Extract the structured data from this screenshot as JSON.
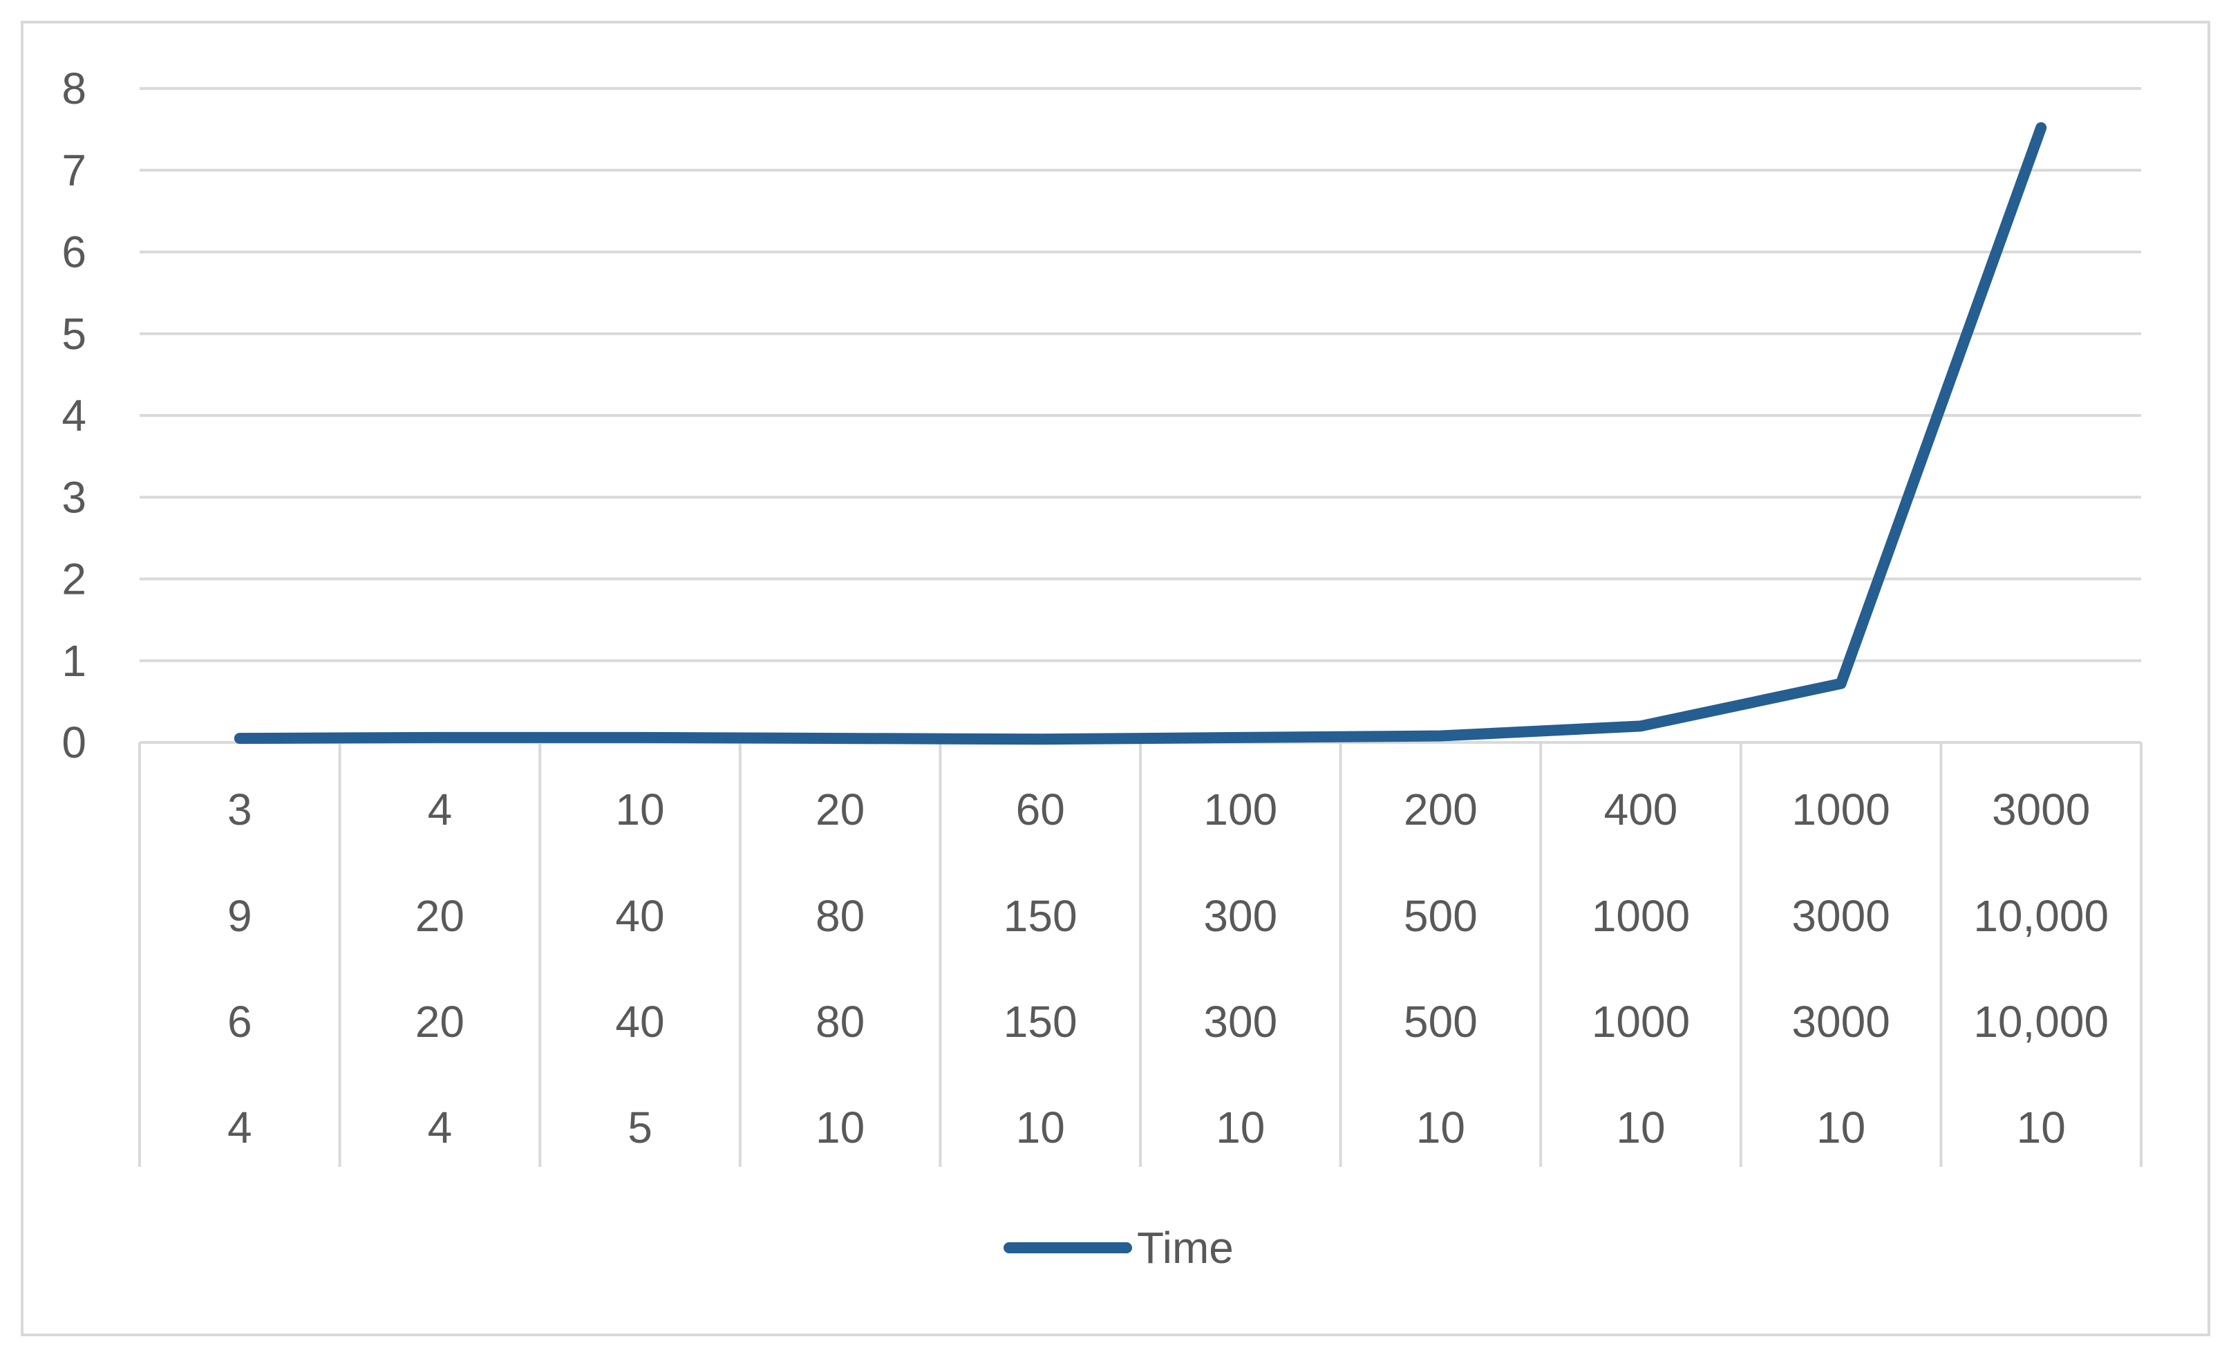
{
  "chart_data": {
    "type": "line",
    "title": "",
    "xlabel": "",
    "ylabel": "",
    "ylim": [
      0,
      8
    ],
    "y_ticks": [
      "0",
      "1",
      "2",
      "3",
      "4",
      "5",
      "6",
      "7",
      "8"
    ],
    "grid": true,
    "legend_position": "bottom",
    "line_color": "#255e91",
    "categories": [
      [
        "3",
        "9",
        "6",
        "4"
      ],
      [
        "4",
        "20",
        "20",
        "4"
      ],
      [
        "10",
        "40",
        "40",
        "5"
      ],
      [
        "20",
        "80",
        "80",
        "10"
      ],
      [
        "60",
        "150",
        "150",
        "10"
      ],
      [
        "100",
        "300",
        "300",
        "10"
      ],
      [
        "200",
        "500",
        "500",
        "10"
      ],
      [
        "400",
        "1000",
        "1000",
        "10"
      ],
      [
        "1000",
        "3000",
        "3000",
        "10"
      ],
      [
        "3000",
        "10,000",
        "10,000",
        "10"
      ]
    ],
    "series": [
      {
        "name": "Time",
        "values": [
          0.05,
          0.06,
          0.06,
          0.05,
          0.04,
          0.06,
          0.08,
          0.2,
          0.72,
          7.52
        ]
      }
    ]
  }
}
